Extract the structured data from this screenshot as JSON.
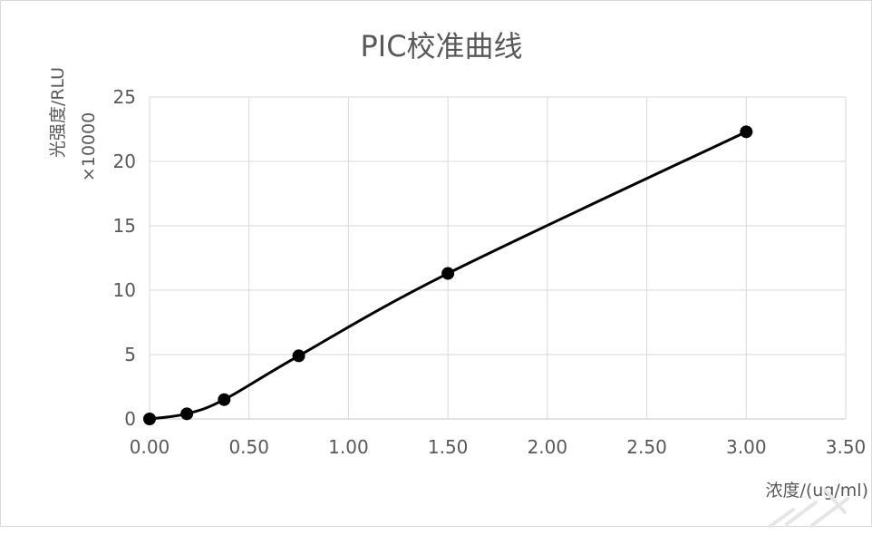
{
  "chart_data": {
    "type": "line",
    "title": "PIC校准曲线",
    "xlabel": "浓度/(ug/ml)",
    "ylabel": "光强度/RLU",
    "ylabel_multiplier": "×10000",
    "xlim": [
      0,
      3.5
    ],
    "ylim": [
      0,
      25
    ],
    "x_ticks": [
      "0.00",
      "0.50",
      "1.00",
      "1.50",
      "2.00",
      "2.50",
      "3.00",
      "3.50"
    ],
    "y_ticks": [
      "0",
      "5",
      "10",
      "15",
      "20",
      "25"
    ],
    "grid": true,
    "smooth": true,
    "series": [
      {
        "x": [
          0.0,
          0.1875,
          0.375,
          0.75,
          1.5,
          3.0
        ],
        "y": [
          0.0,
          0.4,
          1.5,
          4.9,
          11.3,
          22.3
        ]
      }
    ],
    "colors": {
      "line": "#000000",
      "marker": "#000000",
      "grid": "#d9d9d9",
      "text": "#595959"
    }
  }
}
